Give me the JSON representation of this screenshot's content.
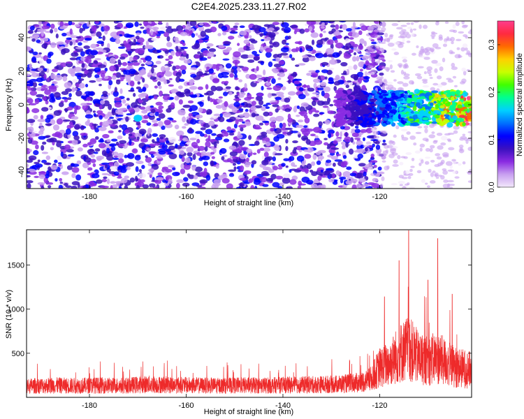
{
  "figure_title": "C2E4.2025.233.11.27.R02",
  "colors": {
    "snr_line": "#ee2a2a",
    "frame": "#000000",
    "colormap": [
      "#f3e8fb",
      "#c8a0f0",
      "#8a2be2",
      "#3a10c0",
      "#0000ff",
      "#0070ff",
      "#00d0ff",
      "#00ff90",
      "#40ff00",
      "#c8ff00",
      "#ffd000",
      "#ff6a00",
      "#ff2a40",
      "#ff3d8c"
    ]
  },
  "chart_data": [
    {
      "type": "heatmap",
      "title": "C2E4.2025.233.11.27.R02",
      "xlabel": "Height of straight line (km)",
      "ylabel": "Frequency (Hz)",
      "xlim": [
        -193,
        -101
      ],
      "ylim": [
        -50,
        50
      ],
      "xticks": [
        -180,
        -160,
        -140,
        -120
      ],
      "yticks": [
        -40,
        -20,
        0,
        20,
        40
      ],
      "colorbar": {
        "label": "Normalized spectral amplitude",
        "range": [
          0.0,
          0.35
        ],
        "ticks": [
          0.0,
          0.1,
          0.2,
          0.3
        ]
      },
      "features": [
        {
          "x_range": [
            -193,
            -123
          ],
          "freq_range": [
            -50,
            50
          ],
          "amplitude": 0.06,
          "note": "broadband noise speckle, violet/blue"
        },
        {
          "x_range": [
            -123,
            -101
          ],
          "freq_range": [
            -12,
            8
          ],
          "amplitude": 0.22,
          "note": "narrow band centred near 0 Hz, green to red"
        },
        {
          "x": -170,
          "freq": -8,
          "amplitude": 0.17
        }
      ]
    },
    {
      "type": "line",
      "xlabel": "Height of straight line (km)",
      "ylabel": "SNR (10 * v/v)",
      "xlim": [
        -193,
        -101
      ],
      "ylim": [
        0,
        1900
      ],
      "xticks": [
        -180,
        -160,
        -140,
        -120
      ],
      "yticks": [
        500,
        1000,
        1500
      ],
      "series": [
        {
          "points": [
            [
              -193,
              160
            ],
            [
              -188,
              170
            ],
            [
              -183,
              165
            ],
            [
              -178,
              170
            ],
            [
              -173,
              165
            ],
            [
              -168,
              185
            ],
            [
              -163,
              175
            ],
            [
              -158,
              170
            ],
            [
              -153,
              165
            ],
            [
              -148,
              170
            ],
            [
              -143,
              170
            ],
            [
              -138,
              175
            ],
            [
              -133,
              180
            ],
            [
              -128,
              190
            ],
            [
              -124,
              210
            ],
            [
              -122,
              250
            ],
            [
              -120,
              420
            ],
            [
              -118,
              480
            ],
            [
              -116,
              620
            ],
            [
              -114,
              700
            ],
            [
              -112,
              560
            ],
            [
              -110,
              520
            ],
            [
              -108,
              560
            ],
            [
              -106,
              480
            ],
            [
              -104,
              420
            ],
            [
              -102,
              400
            ],
            [
              -101,
              380
            ]
          ],
          "peaks": [
            [
              -114,
              1890
            ],
            [
              -116,
              1550
            ],
            [
              -108,
              1800
            ],
            [
              -110,
              1330
            ],
            [
              -119,
              1140
            ],
            [
              -105,
              1170
            ]
          ]
        }
      ]
    }
  ]
}
